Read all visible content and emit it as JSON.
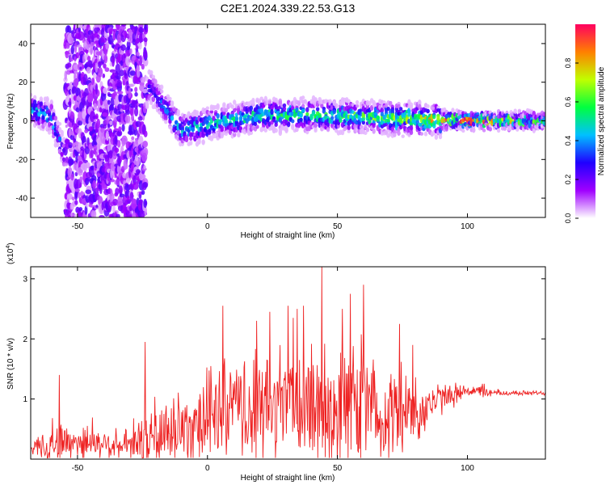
{
  "title": "C2E1.2024.339.22.53.G13",
  "chart_data": [
    {
      "type": "heatmap",
      "xlabel": "Height of straight line (km)",
      "ylabel": "Frequency (Hz)",
      "xlim": [
        -68,
        130
      ],
      "ylim": [
        -50,
        50
      ],
      "x_ticks": [
        -50,
        0,
        50,
        100
      ],
      "y_ticks": [
        -40,
        -20,
        0,
        20,
        40
      ],
      "colorbar": {
        "label": "Normalized spectral amplitude",
        "range": [
          0,
          1
        ],
        "ticks": [
          "0.0",
          "0.2",
          "0.4",
          "0.6",
          "0.8"
        ],
        "colors": [
          "#ffffff",
          "#a000ff",
          "#2000ff",
          "#00c0ff",
          "#00ff40",
          "#c0ff00",
          "#ff8000",
          "#ff0060"
        ]
      },
      "ridge": {
        "x": [
          -68,
          -60,
          -55,
          -50,
          -30,
          -22,
          -10,
          0,
          20,
          40,
          60,
          80,
          100,
          130
        ],
        "frequency": [
          6,
          2,
          -18,
          0,
          0,
          18,
          -5,
          -2,
          3,
          3,
          2,
          1,
          0,
          0
        ],
        "peak_amplitude": [
          0.45,
          0.4,
          0.3,
          0.1,
          0.1,
          0.3,
          0.45,
          0.5,
          0.5,
          0.55,
          0.6,
          0.7,
          0.9,
          0.55
        ]
      },
      "noise_band_x": [
        -55,
        -24
      ]
    },
    {
      "type": "line",
      "xlabel": "Height of straight line (km)",
      "ylabel": "SNR (10 * v/v)",
      "y_multiplier": "(x10",
      "y_exponent": "4",
      "y_unit_suffix": ")",
      "xlim": [
        -68,
        130
      ],
      "ylim": [
        0,
        3.2
      ],
      "x_ticks": [
        -50,
        0,
        50,
        100
      ],
      "y_ticks": [
        1,
        2,
        3
      ],
      "color": "#ee2222",
      "envelope": {
        "x": [
          -68,
          -60,
          -50,
          -40,
          -30,
          -20,
          -10,
          0,
          10,
          20,
          30,
          40,
          50,
          60,
          70,
          80,
          90,
          100,
          110,
          120,
          130
        ],
        "mean": [
          0.2,
          0.25,
          0.3,
          0.25,
          0.2,
          0.35,
          0.5,
          0.7,
          0.8,
          0.8,
          0.85,
          0.9,
          0.85,
          0.8,
          0.75,
          0.8,
          1.0,
          1.15,
          1.1,
          1.1,
          1.1
        ],
        "amplitude": [
          0.2,
          0.4,
          0.4,
          0.3,
          0.3,
          0.7,
          0.8,
          0.9,
          1.0,
          1.1,
          1.2,
          1.3,
          1.4,
          1.2,
          0.9,
          0.7,
          0.3,
          0.15,
          0.08,
          0.05,
          0.05
        ]
      },
      "spikes": [
        {
          "x": -57,
          "y": 1.4
        },
        {
          "x": -24,
          "y": 1.95
        },
        {
          "x": 6,
          "y": 2.55
        },
        {
          "x": 19,
          "y": 2.3
        },
        {
          "x": 24,
          "y": 2.45
        },
        {
          "x": 31,
          "y": 2.55
        },
        {
          "x": 33,
          "y": 2.35
        },
        {
          "x": 37,
          "y": 2.55
        },
        {
          "x": 44,
          "y": 3.2
        },
        {
          "x": 52,
          "y": 2.5
        },
        {
          "x": 55,
          "y": 2.75
        },
        {
          "x": 60,
          "y": 2.9
        },
        {
          "x": 74,
          "y": 2.25
        },
        {
          "x": 79,
          "y": 1.9
        }
      ]
    }
  ]
}
